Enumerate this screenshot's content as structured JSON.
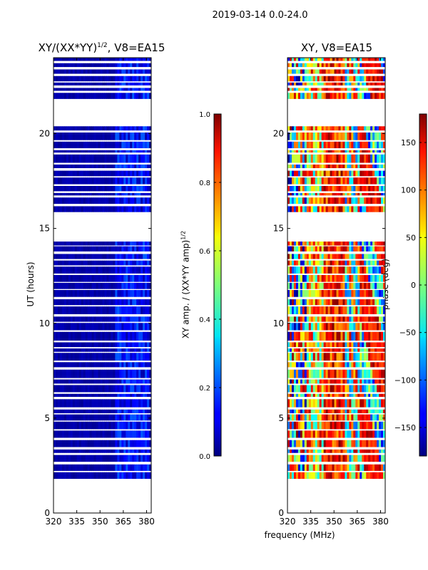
{
  "figure_title": "2019-03-14 0.0-24.0",
  "xlabel": "frequency (MHz)",
  "colors": {
    "jet_dark_blue": "#00007f",
    "jet_dark_red": "#7f0000",
    "axis": "#000000"
  },
  "chart_data": [
    {
      "type": "heatmap",
      "title_text": "XY/(XX*YY)",
      "title_superscript": "1/2",
      "title_suffix": ", V8=EA15",
      "xlabel": "",
      "ylabel": "UT (hours)",
      "xlim": [
        320,
        383
      ],
      "ylim": [
        0,
        24
      ],
      "xticks": [
        320,
        335,
        350,
        365,
        380
      ],
      "yticks": [
        0,
        5,
        10,
        15,
        20
      ],
      "data_time_range": [
        1.8,
        24
      ],
      "gaps_hours": [
        [
          14.4,
          15.5
        ],
        [
          20.9,
          21.6
        ]
      ],
      "colorbar": {
        "label": "XY amp. / (XX*YY amp)",
        "label_superscript": "1/2",
        "range": [
          0.0,
          1.0
        ],
        "ticks": [
          "0.0",
          "0.2",
          "0.4",
          "0.6",
          "0.8",
          "1.0"
        ]
      }
    },
    {
      "type": "heatmap",
      "title": "XY, V8=EA15",
      "xlabel": "frequency (MHz)",
      "ylabel": "",
      "xlim": [
        320,
        383
      ],
      "ylim": [
        0,
        24
      ],
      "xticks": [
        320,
        335,
        350,
        365,
        380
      ],
      "yticks": [
        0,
        5,
        10,
        15,
        20
      ],
      "data_time_range": [
        1.8,
        24
      ],
      "gaps_hours": [
        [
          14.4,
          15.5
        ],
        [
          20.9,
          21.6
        ]
      ],
      "colorbar": {
        "label": "phase (deg)",
        "range": [
          -180,
          180
        ],
        "ticks": [
          "−150",
          "−100",
          "−50",
          "0",
          "50",
          "100",
          "150"
        ]
      }
    }
  ]
}
